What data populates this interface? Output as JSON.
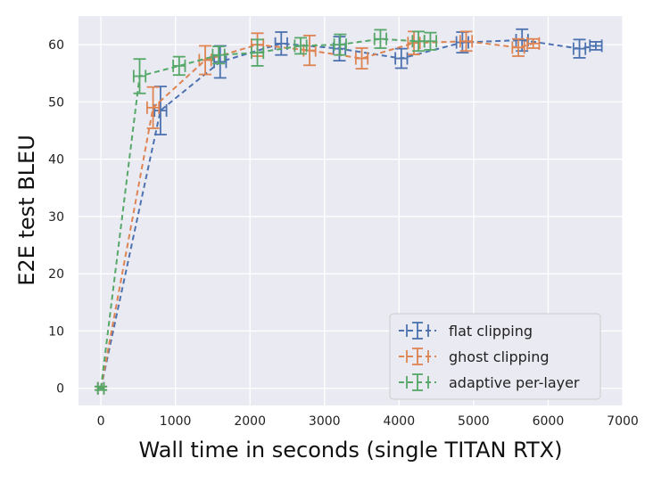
{
  "chart_data": {
    "type": "line",
    "title": "",
    "xlabel": "Wall time in seconds (single TITAN RTX)",
    "ylabel": "E2E test BLEU",
    "xlim": [
      -300,
      7000
    ],
    "ylim": [
      -3,
      65
    ],
    "xticks": [
      0,
      1000,
      2000,
      3000,
      4000,
      5000,
      6000,
      7000
    ],
    "yticks": [
      0,
      10,
      20,
      30,
      40,
      50,
      60
    ],
    "grid": true,
    "legend_position": "bottom-right",
    "series": [
      {
        "name": "flat clipping",
        "color": "#4c72b0",
        "points": [
          {
            "x": 0,
            "y": 0,
            "xerr": 40,
            "yerr": 0.3
          },
          {
            "x": 800,
            "y": 48.5,
            "xerr": 80,
            "yerr": 4.2
          },
          {
            "x": 1600,
            "y": 57,
            "xerr": 80,
            "yerr": 2.8
          },
          {
            "x": 2420,
            "y": 60.2,
            "xerr": 80,
            "yerr": 2
          },
          {
            "x": 3200,
            "y": 59.3,
            "xerr": 80,
            "yerr": 2.1
          },
          {
            "x": 4030,
            "y": 57.6,
            "xerr": 80,
            "yerr": 1.7
          },
          {
            "x": 4850,
            "y": 60.4,
            "xerr": 80,
            "yerr": 1.8
          },
          {
            "x": 5650,
            "y": 60.8,
            "xerr": 80,
            "yerr": 1.9
          },
          {
            "x": 6420,
            "y": 59.3,
            "xerr": 80,
            "yerr": 1.6
          },
          {
            "x": 6640,
            "y": 59.8,
            "xerr": 80,
            "yerr": 0.7
          }
        ]
      },
      {
        "name": "ghost clipping",
        "color": "#dd8452",
        "points": [
          {
            "x": 0,
            "y": 0,
            "xerr": 40,
            "yerr": 0.3
          },
          {
            "x": 700,
            "y": 49,
            "xerr": 80,
            "yerr": 3.6
          },
          {
            "x": 1400,
            "y": 57.3,
            "xerr": 80,
            "yerr": 2.5
          },
          {
            "x": 2100,
            "y": 60,
            "xerr": 80,
            "yerr": 2
          },
          {
            "x": 2800,
            "y": 59,
            "xerr": 80,
            "yerr": 2.6
          },
          {
            "x": 3500,
            "y": 57.6,
            "xerr": 80,
            "yerr": 1.8
          },
          {
            "x": 4200,
            "y": 60.3,
            "xerr": 80,
            "yerr": 2
          },
          {
            "x": 4900,
            "y": 60.6,
            "xerr": 80,
            "yerr": 1.7
          },
          {
            "x": 5600,
            "y": 59.5,
            "xerr": 80,
            "yerr": 1.5
          },
          {
            "x": 5800,
            "y": 60.2,
            "xerr": 80,
            "yerr": 0.8
          }
        ]
      },
      {
        "name": "adaptive per-layer",
        "color": "#55a868",
        "points": [
          {
            "x": 0,
            "y": 0,
            "xerr": 40,
            "yerr": 0.3
          },
          {
            "x": 520,
            "y": 54.5,
            "xerr": 80,
            "yerr": 3
          },
          {
            "x": 1050,
            "y": 56.3,
            "xerr": 80,
            "yerr": 1.6
          },
          {
            "x": 1580,
            "y": 58.2,
            "xerr": 80,
            "yerr": 1.5
          },
          {
            "x": 2100,
            "y": 58.6,
            "xerr": 80,
            "yerr": 2.3
          },
          {
            "x": 2680,
            "y": 59.8,
            "xerr": 80,
            "yerr": 1.4
          },
          {
            "x": 3210,
            "y": 60,
            "xerr": 80,
            "yerr": 1.8
          },
          {
            "x": 3750,
            "y": 61,
            "xerr": 80,
            "yerr": 1.6
          },
          {
            "x": 4260,
            "y": 60.6,
            "xerr": 80,
            "yerr": 1.7
          },
          {
            "x": 4420,
            "y": 60.6,
            "xerr": 80,
            "yerr": 1.5
          }
        ]
      }
    ]
  }
}
